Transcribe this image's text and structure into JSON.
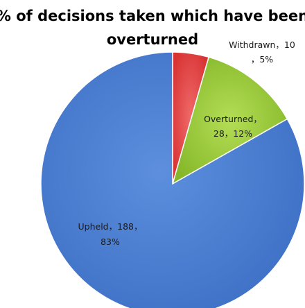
{
  "chart_data": {
    "type": "pie",
    "title_lines": [
      "% of decisions taken which have been",
      "overturned"
    ],
    "slices": [
      {
        "label": "Withdrawn",
        "value": 10,
        "percent": "5%",
        "color": "#e84343",
        "label_lines": [
          "Withdrawn，10",
          "，5%"
        ]
      },
      {
        "label": "Overturned",
        "value": 28,
        "percent": "12%",
        "color": "#99cc33",
        "label_lines": [
          "Overturned，",
          "28，12%"
        ]
      },
      {
        "label": "Upheld",
        "value": 188,
        "percent": "83%",
        "color": "#4a7fd4",
        "label_lines": [
          "Upheld，188，",
          "83%"
        ]
      }
    ]
  }
}
